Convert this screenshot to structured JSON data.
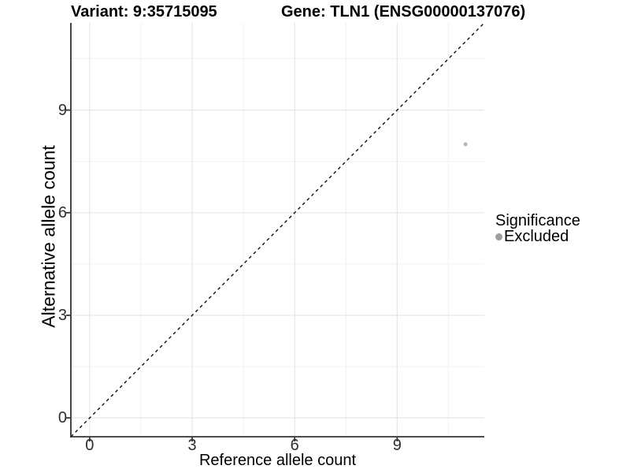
{
  "title": {
    "left": "Variant: 9:35715095",
    "right": "Gene: TLN1 (ENSG00000137076)"
  },
  "axes": {
    "x_label": "Reference allele count",
    "y_label": "Alternative allele count"
  },
  "legend": {
    "title": "Significance",
    "items": [
      {
        "label": "Excluded",
        "color": "#9e9e9e"
      }
    ]
  },
  "chart_data": {
    "type": "scatter",
    "title": "Variant: 9:35715095 / Gene: TLN1 (ENSG00000137076)",
    "xlabel": "Reference allele count",
    "ylabel": "Alternative allele count",
    "xlim": [
      -0.55,
      11.55
    ],
    "ylim": [
      -0.55,
      11.55
    ],
    "x_major_ticks": [
      0,
      3,
      6,
      9
    ],
    "y_major_ticks": [
      0,
      3,
      6,
      9
    ],
    "x_minor_ticks": [
      1.5,
      4.5,
      7.5,
      10.5
    ],
    "y_minor_ticks": [
      1.5,
      4.5,
      7.5,
      10.5
    ],
    "grid": true,
    "legend_position": "right",
    "reference_line": {
      "slope": 1,
      "intercept": 0,
      "style": "dashed",
      "color": "#000000"
    },
    "series": [
      {
        "name": "Excluded",
        "color": "#b5b5b5",
        "point_radius": 2.5,
        "points": [
          {
            "x": 11,
            "y": 8
          }
        ]
      }
    ],
    "style_colors": {
      "major_grid": "#e5e5e5",
      "minor_grid": "#f1f1f1",
      "axis_line": "#333333",
      "tick_mark": "#333333",
      "tick_label": "#2e2e2e"
    }
  }
}
